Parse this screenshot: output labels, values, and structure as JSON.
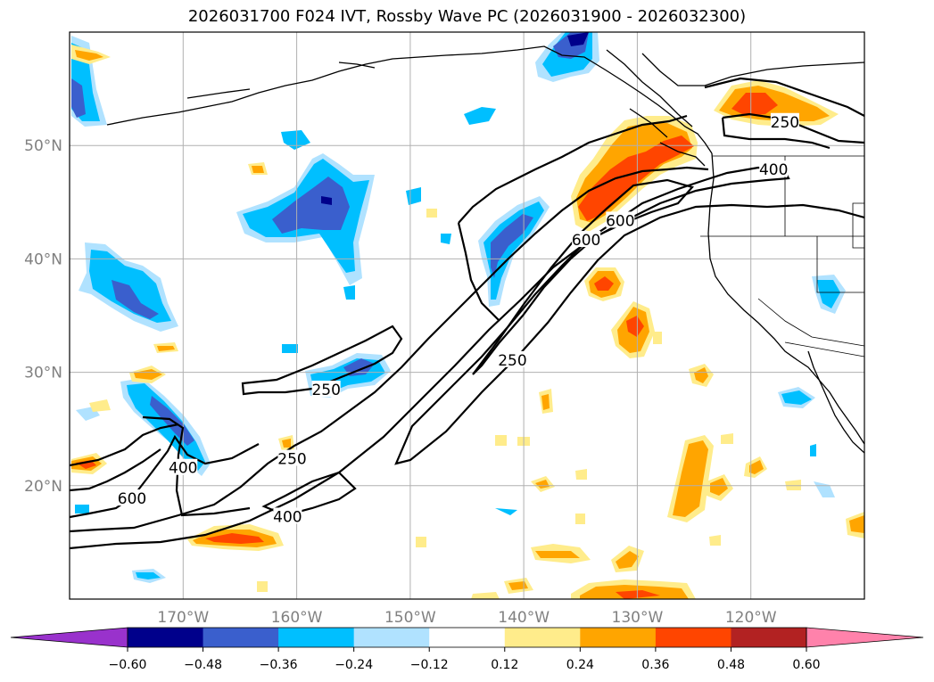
{
  "title": "2026031700 F024 IVT, Rossby Wave PC (2026031900 - 2026032300)",
  "lat_labels": [
    {
      "text": "50°N",
      "lat": 50
    },
    {
      "text": "40°N",
      "lat": 40
    },
    {
      "text": "30°N",
      "lat": 30
    },
    {
      "text": "20°N",
      "lat": 20
    }
  ],
  "lon_labels": [
    {
      "text": "170°W",
      "lon": -170
    },
    {
      "text": "160°W",
      "lon": -160
    },
    {
      "text": "150°W",
      "lon": -150
    },
    {
      "text": "140°W",
      "lon": -140
    },
    {
      "text": "130°W",
      "lon": -130
    },
    {
      "text": "120°W",
      "lon": -120
    }
  ],
  "extent": {
    "lon": [
      -180,
      -110
    ],
    "lat": [
      10,
      60
    ]
  },
  "colorbar": {
    "colors": [
      "#9932cc",
      "#00008b",
      "#3a5fcd",
      "#00bfff",
      "#b0e2ff",
      "#ffffff",
      "#ffec8b",
      "#ffa500",
      "#ff4500",
      "#b22222",
      "#ff82ab"
    ],
    "ticks": [
      "−0.60",
      "−0.48",
      "−0.36",
      "−0.24",
      "−0.12",
      "0.12",
      "0.24",
      "0.36",
      "0.48",
      "0.60"
    ]
  },
  "contour_labels": [
    {
      "text": "250",
      "lon": -157.4,
      "lat": 28.4
    },
    {
      "text": "250",
      "lon": -160.4,
      "lat": 22.3
    },
    {
      "text": "250",
      "lon": -141.0,
      "lat": 31.0
    },
    {
      "text": "250",
      "lon": -117.0,
      "lat": 52.0
    },
    {
      "text": "400",
      "lon": -170.0,
      "lat": 21.5
    },
    {
      "text": "400",
      "lon": -160.8,
      "lat": 17.2
    },
    {
      "text": "400",
      "lon": -118.0,
      "lat": 47.8
    },
    {
      "text": "600",
      "lon": -174.5,
      "lat": 18.8
    },
    {
      "text": "600",
      "lon": -134.5,
      "lat": 41.6
    },
    {
      "text": "600",
      "lon": -131.5,
      "lat": 43.3
    }
  ]
}
